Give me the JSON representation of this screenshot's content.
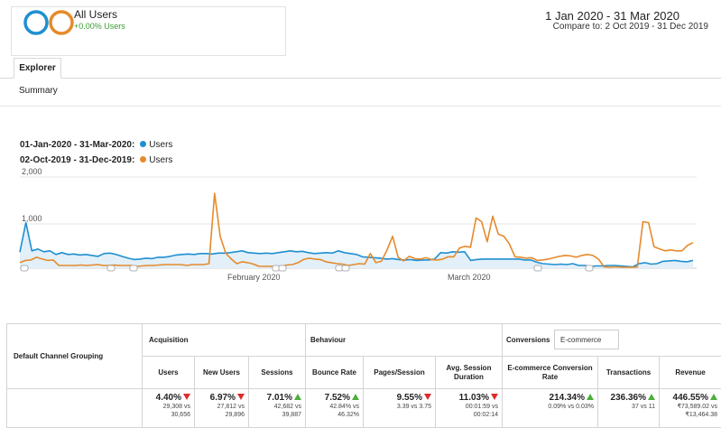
{
  "segment": {
    "name": "All Users",
    "change": "+0.00% Users"
  },
  "date_range": {
    "primary": "1 Jan 2020 - 31 Mar 2020",
    "compare": "Compare to: 2 Oct 2019 - 31 Dec 2019"
  },
  "tabs": {
    "explorer": "Explorer",
    "summary": "Summary"
  },
  "colors": {
    "primary_series": "#1f8fd1",
    "compare_series": "#e58a2c",
    "up": "#4caf3a",
    "down": "#dd2c2c"
  },
  "legend": [
    {
      "range": "01-Jan-2020 - 31-Mar-2020:",
      "metric": "Users",
      "color": "#1f8fd1"
    },
    {
      "range": "02-Oct-2019 - 31-Dec-2019:",
      "metric": "Users",
      "color": "#e58a2c"
    }
  ],
  "chart_data": {
    "type": "area",
    "y_ticks": [
      "2,000",
      "1,000"
    ],
    "x_ticks": [
      "February 2020",
      "March 2020"
    ],
    "ylim": [
      0,
      2000
    ],
    "series": [
      {
        "name": "Users",
        "values": [
          350,
          1000,
          380,
          420,
          360,
          380,
          300,
          340,
          300,
          310,
          290,
          300,
          280,
          260,
          320,
          330,
          300,
          260,
          220,
          190,
          200,
          220,
          210,
          240,
          240,
          260,
          290,
          300,
          310,
          300,
          320,
          320,
          310,
          330,
          330,
          340,
          360,
          380,
          340,
          330,
          320,
          330,
          320,
          340,
          360,
          380,
          360,
          370,
          340,
          320,
          330,
          340,
          330,
          380,
          340,
          320,
          300,
          250,
          240,
          230,
          220,
          200,
          210,
          190,
          180,
          190,
          170,
          180,
          180,
          200,
          340,
          330,
          360,
          350,
          360,
          170,
          190,
          200,
          200,
          200,
          200,
          200,
          200,
          200,
          180,
          180,
          130,
          100,
          90,
          80,
          90,
          80,
          100,
          60,
          60,
          40,
          50,
          50,
          60,
          60,
          50,
          40,
          30,
          100,
          120,
          90,
          100,
          150,
          160,
          170,
          150,
          140,
          170
        ]
      },
      {
        "name": "Users",
        "values": [
          120,
          170,
          180,
          240,
          200,
          170,
          180,
          60,
          60,
          60,
          60,
          70,
          60,
          70,
          80,
          60,
          60,
          70,
          60,
          60,
          60,
          40,
          50,
          60,
          60,
          70,
          80,
          80,
          80,
          80,
          60,
          80,
          80,
          80,
          100,
          1640,
          700,
          330,
          200,
          100,
          140,
          120,
          90,
          40,
          40,
          40,
          40,
          40,
          70,
          80,
          120,
          190,
          220,
          200,
          190,
          140,
          120,
          100,
          90,
          60,
          80,
          100,
          90,
          320,
          120,
          150,
          400,
          700,
          240,
          160,
          260,
          210,
          200,
          230,
          190,
          180,
          200,
          250,
          250,
          440,
          480,
          460,
          1100,
          1020,
          580,
          1140,
          750,
          700,
          530,
          250,
          240,
          220,
          230,
          170,
          180,
          200,
          230,
          260,
          280,
          270,
          240,
          280,
          300,
          280,
          200,
          30,
          20,
          30,
          20,
          20,
          20,
          25,
          1020,
          1000,
          470,
          420,
          380,
          400,
          380,
          380,
          500,
          560
        ]
      }
    ]
  },
  "table": {
    "group_header": "Default Channel Grouping",
    "sections": {
      "acquisition": "Acquisition",
      "behaviour": "Behaviour",
      "conversions": "Conversions",
      "conversions_select": "E-commerce"
    },
    "columns": [
      "Users",
      "New Users",
      "Sessions",
      "Bounce Rate",
      "Pages/Session",
      "Avg. Session Duration",
      "E-commerce Conversion Rate",
      "Transactions",
      "Revenue"
    ],
    "totals": [
      {
        "pct": "4.40%",
        "dir": "down",
        "l1": "29,308 vs",
        "l2": "30,656"
      },
      {
        "pct": "6.97%",
        "dir": "down",
        "l1": "27,812 vs",
        "l2": "29,896"
      },
      {
        "pct": "7.01%",
        "dir": "up",
        "l1": "42,682 vs",
        "l2": "39,887"
      },
      {
        "pct": "7.52%",
        "dir": "up",
        "l1": "42.84% vs",
        "l2": "46.32%"
      },
      {
        "pct": "9.55%",
        "dir": "down",
        "l1": "3.39 vs 3.75",
        "l2": ""
      },
      {
        "pct": "11.03%",
        "dir": "down",
        "l1": "00:01:59 vs",
        "l2": "00:02:14"
      },
      {
        "pct": "214.34%",
        "dir": "up",
        "l1": "0.09% vs 0.03%",
        "l2": ""
      },
      {
        "pct": "236.36%",
        "dir": "up",
        "l1": "37 vs 11",
        "l2": ""
      },
      {
        "pct": "446.55%",
        "dir": "up",
        "l1": "₹73,589.02 vs",
        "l2": "₹13,464.38"
      }
    ]
  }
}
